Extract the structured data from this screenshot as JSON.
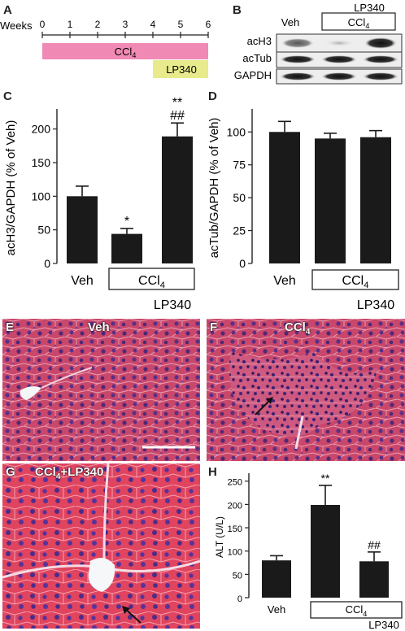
{
  "panels": {
    "A": {
      "letter": "A",
      "axis_label": "Weeks",
      "week_ticks": [
        "0",
        "1",
        "2",
        "3",
        "4",
        "5",
        "6"
      ],
      "ccl4_bar": {
        "text": "CCl",
        "sub": "4",
        "color": "#f08ab4",
        "start_week": 0,
        "end_week": 6
      },
      "lp340_bar": {
        "text": "LP340",
        "color": "#e8ea8c",
        "start_week": 4,
        "end_week": 6
      }
    },
    "B": {
      "letter": "B",
      "lp340_label": "LP340",
      "veh_label": "Veh",
      "ccl4_label": "CCl",
      "ccl4_sub": "4",
      "rows": [
        "acH3",
        "acTub",
        "GAPDH"
      ]
    },
    "C": {
      "letter": "C"
    },
    "D": {
      "letter": "D"
    },
    "E": {
      "letter": "E",
      "label": "Veh"
    },
    "F": {
      "letter": "F",
      "label": "CCl",
      "label_sub": "4"
    },
    "G": {
      "letter": "G",
      "label_pre": "CCl",
      "label_sub": "4",
      "label_post": "+LP340"
    },
    "H": {
      "letter": "H"
    }
  },
  "chart_data": [
    {
      "panel": "C",
      "type": "bar",
      "categories": [
        "Veh",
        "CCl4",
        "CCl4+LP340"
      ],
      "values": [
        100,
        44,
        189
      ],
      "errors": [
        15,
        8,
        20
      ],
      "significance": [
        "",
        "*",
        "**\n##"
      ],
      "ylabel": "acH3/GAPDH (% of Veh)",
      "ylim": [
        0,
        225
      ],
      "yticks": [
        "0",
        "50",
        "100",
        "150",
        "200"
      ],
      "xlabels": {
        "veh": "Veh",
        "group": "CCl",
        "group_sub": "4",
        "extra": "LP340"
      }
    },
    {
      "panel": "D",
      "type": "bar",
      "categories": [
        "Veh",
        "CCl4",
        "CCl4+LP340"
      ],
      "values": [
        100,
        95,
        96
      ],
      "errors": [
        8,
        4,
        5
      ],
      "significance": [
        "",
        "",
        ""
      ],
      "ylabel": "acTub/GAPDH (% of Veh)",
      "ylim": [
        0,
        115
      ],
      "yticks": [
        "0",
        "25",
        "50",
        "75",
        "100"
      ],
      "xlabels": {
        "veh": "Veh",
        "group": "CCl",
        "group_sub": "4",
        "extra": "LP340"
      }
    },
    {
      "panel": "H",
      "type": "bar",
      "categories": [
        "Veh",
        "CCl4",
        "CCl4+LP340"
      ],
      "values": [
        80,
        199,
        78
      ],
      "errors": [
        10,
        42,
        20
      ],
      "significance": [
        "",
        "**",
        "##"
      ],
      "ylabel": "ALT (U/L)",
      "ylim": [
        0,
        260
      ],
      "yticks": [
        "0",
        "50",
        "100",
        "150",
        "200",
        "250"
      ],
      "xlabels": {
        "veh": "Veh",
        "group": "CCl",
        "group_sub": "4",
        "extra": "LP340"
      }
    }
  ]
}
